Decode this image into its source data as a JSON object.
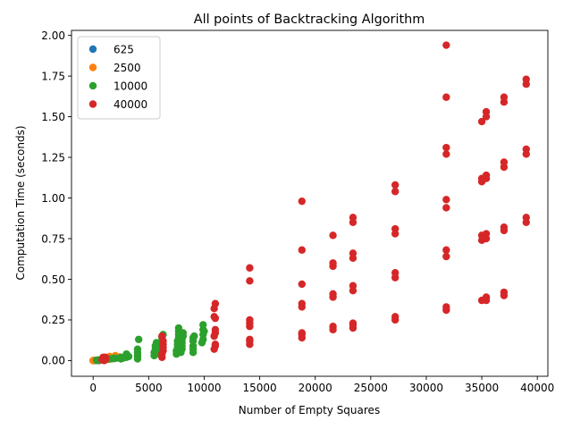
{
  "chart_data": {
    "type": "scatter",
    "title": "All points of Backtracking Algorithm",
    "xlabel": "Number of Empty Squares",
    "ylabel": "Computation Time (seconds)",
    "xlim": [
      -1950,
      40950
    ],
    "ylim": [
      -0.0967,
      2.031
    ],
    "xticks": [
      0,
      5000,
      10000,
      15000,
      20000,
      25000,
      30000,
      35000,
      40000
    ],
    "yticks": [
      0.0,
      0.25,
      0.5,
      0.75,
      1.0,
      1.25,
      1.5,
      1.75,
      2.0
    ],
    "grid": false,
    "legend_position": "top-left",
    "series": [
      {
        "name": "625",
        "color": "#1f77b4",
        "points": [
          [
            0,
            0.0
          ],
          [
            50,
            0.0
          ],
          [
            100,
            0.0
          ],
          [
            150,
            0.0
          ],
          [
            200,
            0.0
          ],
          [
            250,
            0.001
          ],
          [
            300,
            0.001
          ],
          [
            350,
            0.0
          ],
          [
            400,
            0.001
          ],
          [
            450,
            0.001
          ],
          [
            500,
            0.0
          ],
          [
            550,
            0.001
          ],
          [
            600,
            0.001
          ]
        ]
      },
      {
        "name": "2500",
        "color": "#ff7f0e",
        "points": [
          [
            0,
            0.0
          ],
          [
            100,
            0.001
          ],
          [
            200,
            0.001
          ],
          [
            300,
            0.002
          ],
          [
            400,
            0.002
          ],
          [
            500,
            0.003
          ],
          [
            600,
            0.003
          ],
          [
            700,
            0.004
          ],
          [
            800,
            0.005
          ],
          [
            900,
            0.006
          ],
          [
            1000,
            0.006
          ],
          [
            1100,
            0.007
          ],
          [
            1200,
            0.007
          ],
          [
            1300,
            0.008
          ],
          [
            1400,
            0.009
          ],
          [
            1500,
            0.01
          ],
          [
            1600,
            0.01
          ],
          [
            1700,
            0.012
          ],
          [
            1800,
            0.013
          ],
          [
            1900,
            0.014
          ],
          [
            2000,
            0.015
          ],
          [
            2100,
            0.016
          ],
          [
            2200,
            0.018
          ],
          [
            2300,
            0.02
          ],
          [
            2400,
            0.022
          ],
          [
            1000,
            0.02
          ],
          [
            1500,
            0.025
          ],
          [
            2000,
            0.03
          ]
        ]
      },
      {
        "name": "10000",
        "color": "#2ca02c",
        "points": [
          [
            300,
            0.002
          ],
          [
            500,
            0.003
          ],
          [
            800,
            0.004
          ],
          [
            1000,
            0.006
          ],
          [
            1200,
            0.007
          ],
          [
            1500,
            0.01
          ],
          [
            1800,
            0.012
          ],
          [
            2000,
            0.014
          ],
          [
            2500,
            0.01
          ],
          [
            2500,
            0.02
          ],
          [
            2700,
            0.015
          ],
          [
            3000,
            0.02
          ],
          [
            3000,
            0.03
          ],
          [
            3200,
            0.025
          ],
          [
            3000,
            0.04
          ],
          [
            4000,
            0.01
          ],
          [
            4000,
            0.03
          ],
          [
            4000,
            0.05
          ],
          [
            4000,
            0.07
          ],
          [
            4100,
            0.13
          ],
          [
            5500,
            0.03
          ],
          [
            5500,
            0.05
          ],
          [
            5600,
            0.07
          ],
          [
            5600,
            0.09
          ],
          [
            5700,
            0.11
          ],
          [
            6000,
            0.04
          ],
          [
            6000,
            0.06
          ],
          [
            6100,
            0.08
          ],
          [
            6100,
            0.1
          ],
          [
            6200,
            0.12
          ],
          [
            6200,
            0.14
          ],
          [
            6300,
            0.16
          ],
          [
            7500,
            0.04
          ],
          [
            7500,
            0.06
          ],
          [
            7600,
            0.08
          ],
          [
            7600,
            0.1
          ],
          [
            7600,
            0.12
          ],
          [
            7700,
            0.14
          ],
          [
            7700,
            0.16
          ],
          [
            7700,
            0.18
          ],
          [
            7700,
            0.2
          ],
          [
            7900,
            0.05
          ],
          [
            8000,
            0.07
          ],
          [
            8000,
            0.09
          ],
          [
            8000,
            0.11
          ],
          [
            8000,
            0.13
          ],
          [
            8100,
            0.15
          ],
          [
            8100,
            0.17
          ],
          [
            9000,
            0.05
          ],
          [
            9000,
            0.07
          ],
          [
            9000,
            0.09
          ],
          [
            9000,
            0.12
          ],
          [
            9000,
            0.14
          ],
          [
            9100,
            0.15
          ],
          [
            9800,
            0.11
          ],
          [
            9900,
            0.13
          ],
          [
            9900,
            0.16
          ],
          [
            9900,
            0.19
          ],
          [
            9900,
            0.22
          ],
          [
            10000,
            0.18
          ]
        ]
      },
      {
        "name": "40000",
        "color": "#d62728",
        "points": [
          [
            800,
            0.005
          ],
          [
            900,
            0.01
          ],
          [
            900,
            0.02
          ],
          [
            1000,
            0.0
          ],
          [
            1000,
            0.015
          ],
          [
            1100,
            0.005
          ],
          [
            1100,
            0.01
          ],
          [
            1100,
            0.02
          ],
          [
            6200,
            0.02
          ],
          [
            6200,
            0.04
          ],
          [
            6300,
            0.06
          ],
          [
            6300,
            0.08
          ],
          [
            6300,
            0.1
          ],
          [
            6300,
            0.12
          ],
          [
            6200,
            0.15
          ],
          [
            10900,
            0.07
          ],
          [
            11000,
            0.09
          ],
          [
            11000,
            0.1
          ],
          [
            10900,
            0.15
          ],
          [
            11000,
            0.17
          ],
          [
            11000,
            0.19
          ],
          [
            10900,
            0.27
          ],
          [
            11000,
            0.26
          ],
          [
            10900,
            0.32
          ],
          [
            11000,
            0.35
          ],
          [
            14100,
            0.1
          ],
          [
            14100,
            0.12
          ],
          [
            14100,
            0.13
          ],
          [
            14100,
            0.21
          ],
          [
            14100,
            0.23
          ],
          [
            14100,
            0.25
          ],
          [
            14100,
            0.49
          ],
          [
            14100,
            0.57
          ],
          [
            18800,
            0.14
          ],
          [
            18800,
            0.16
          ],
          [
            18800,
            0.17
          ],
          [
            18800,
            0.33
          ],
          [
            18800,
            0.35
          ],
          [
            18800,
            0.47
          ],
          [
            18800,
            0.68
          ],
          [
            18800,
            0.98
          ],
          [
            21600,
            0.19
          ],
          [
            21600,
            0.21
          ],
          [
            21600,
            0.39
          ],
          [
            21600,
            0.41
          ],
          [
            21600,
            0.58
          ],
          [
            21600,
            0.6
          ],
          [
            21600,
            0.77
          ],
          [
            23400,
            0.2
          ],
          [
            23400,
            0.22
          ],
          [
            23400,
            0.23
          ],
          [
            23400,
            0.43
          ],
          [
            23400,
            0.46
          ],
          [
            23400,
            0.63
          ],
          [
            23400,
            0.66
          ],
          [
            23400,
            0.85
          ],
          [
            23400,
            0.88
          ],
          [
            27200,
            0.25
          ],
          [
            27200,
            0.27
          ],
          [
            27200,
            0.51
          ],
          [
            27200,
            0.54
          ],
          [
            27200,
            0.78
          ],
          [
            27200,
            0.81
          ],
          [
            27200,
            1.04
          ],
          [
            27200,
            1.08
          ],
          [
            31800,
            0.31
          ],
          [
            31800,
            0.33
          ],
          [
            31800,
            0.64
          ],
          [
            31800,
            0.68
          ],
          [
            31800,
            0.94
          ],
          [
            31800,
            0.99
          ],
          [
            31800,
            1.27
          ],
          [
            31800,
            1.31
          ],
          [
            31800,
            1.62
          ],
          [
            31800,
            1.94
          ],
          [
            35000,
            0.37
          ],
          [
            35000,
            0.74
          ],
          [
            35000,
            0.77
          ],
          [
            35000,
            1.1
          ],
          [
            35000,
            1.12
          ],
          [
            35000,
            1.47
          ],
          [
            35400,
            0.37
          ],
          [
            35400,
            0.39
          ],
          [
            35400,
            0.75
          ],
          [
            35400,
            0.78
          ],
          [
            35400,
            1.12
          ],
          [
            35400,
            1.14
          ],
          [
            35400,
            1.5
          ],
          [
            35400,
            1.53
          ],
          [
            37000,
            0.4
          ],
          [
            37000,
            0.42
          ],
          [
            37000,
            0.8
          ],
          [
            37000,
            0.82
          ],
          [
            37000,
            1.19
          ],
          [
            37000,
            1.22
          ],
          [
            37000,
            1.59
          ],
          [
            37000,
            1.62
          ],
          [
            39000,
            0.85
          ],
          [
            39000,
            0.88
          ],
          [
            39000,
            1.27
          ],
          [
            39000,
            1.3
          ],
          [
            39000,
            1.7
          ],
          [
            39000,
            1.73
          ]
        ]
      }
    ]
  }
}
